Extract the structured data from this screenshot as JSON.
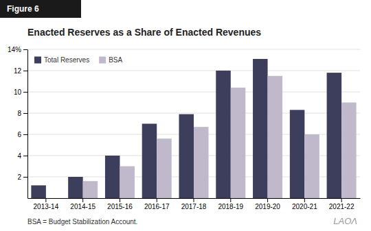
{
  "chart_data": {
    "type": "bar",
    "title": "Enacted Reserves as a Share of Enacted Revenues",
    "categories": [
      "2013-14",
      "2014-15",
      "2015-16",
      "2016-17",
      "2017-18",
      "2018-19",
      "2019-20",
      "2020-21",
      "2021-22"
    ],
    "series": [
      {
        "name": "Total Reserves",
        "color": "#3d3d5c",
        "values": [
          1.2,
          2.0,
          4.0,
          7.0,
          7.9,
          12.0,
          13.1,
          8.3,
          11.8
        ]
      },
      {
        "name": "BSA",
        "color": "#c0b9cb",
        "values": [
          0.0,
          1.6,
          3.0,
          5.6,
          6.7,
          10.4,
          11.5,
          6.0,
          9.0
        ]
      }
    ],
    "ylim": [
      0,
      14
    ],
    "yticks": [
      2,
      4,
      6,
      8,
      10,
      12,
      {
        "value": 14,
        "label": "14%"
      }
    ],
    "grid": true,
    "legend": "top-left",
    "annotations": [
      "Figure 6",
      "BSA = Budget Stabilization Account.",
      "LAOΛ"
    ]
  }
}
